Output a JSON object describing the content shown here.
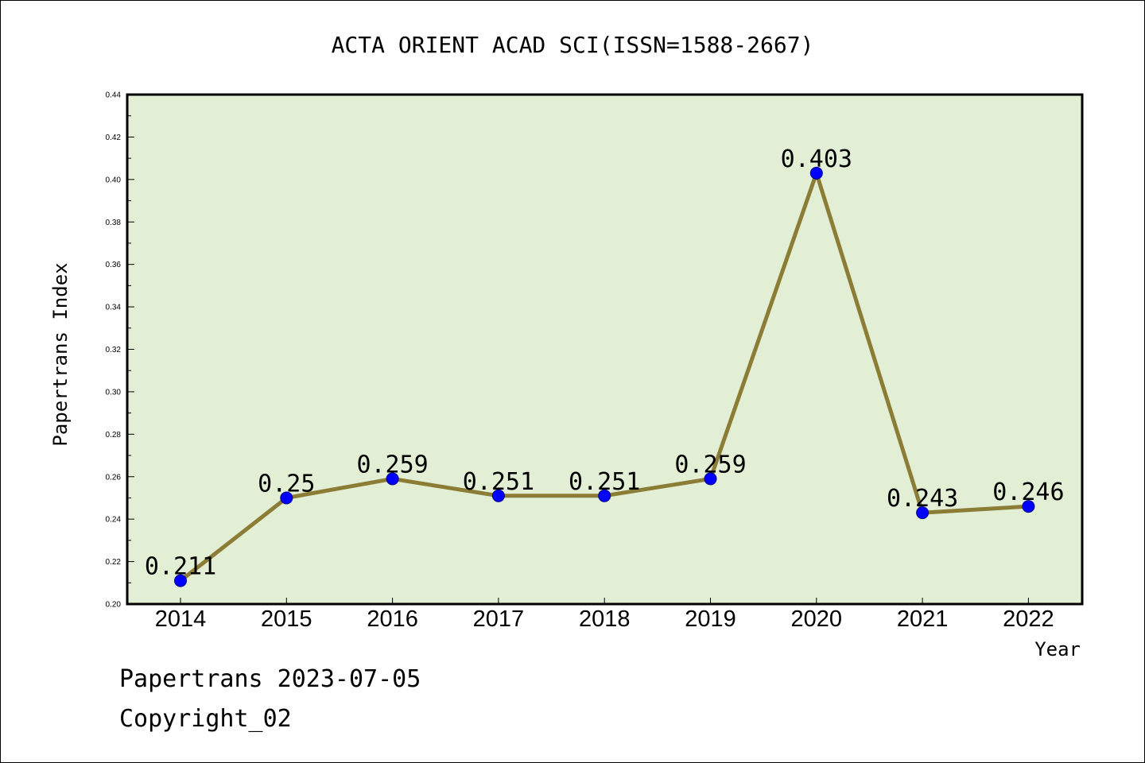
{
  "chart_data": {
    "type": "line",
    "title": "ACTA ORIENT ACAD SCI(ISSN=1588-2667)",
    "xlabel": "Year",
    "ylabel": "Papertrans Index",
    "categories": [
      "2014",
      "2015",
      "2016",
      "2017",
      "2018",
      "2019",
      "2020",
      "2021",
      "2022"
    ],
    "series": [
      {
        "values": [
          0.211,
          0.25,
          0.259,
          0.251,
          0.251,
          0.259,
          0.403,
          0.243,
          0.246
        ],
        "data_labels": [
          "0.211",
          "0.25",
          "0.259",
          "0.251",
          "0.251",
          "0.259",
          "0.403",
          "0.243",
          "0.246"
        ]
      }
    ],
    "ylim": [
      0.2,
      0.44
    ],
    "yticks": [
      "0.20",
      "0.22",
      "0.24",
      "0.26",
      "0.28",
      "0.30",
      "0.32",
      "0.34",
      "0.36",
      "0.38",
      "0.40",
      "0.42",
      "0.44"
    ],
    "grid": false,
    "legend": "none",
    "colors": {
      "plot_background": "#e2efd5",
      "line": "#8b7d35",
      "marker_fill": "#0000ff",
      "marker_stroke": "#00008b"
    }
  },
  "footer": {
    "date_line": "Papertrans 2023-07-05",
    "copyright": "Copyright_02"
  }
}
